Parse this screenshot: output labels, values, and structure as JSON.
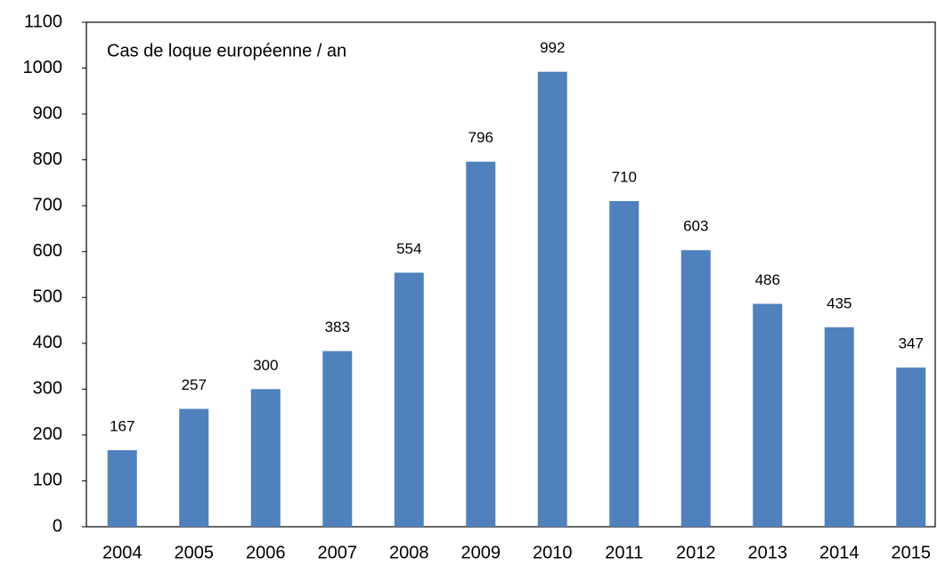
{
  "chart_data": {
    "type": "bar",
    "title": "Cas de loque européenne / an",
    "categories": [
      "2004",
      "2005",
      "2006",
      "2007",
      "2008",
      "2009",
      "2010",
      "2011",
      "2012",
      "2013",
      "2014",
      "2015"
    ],
    "values": [
      167,
      257,
      300,
      383,
      554,
      796,
      992,
      710,
      603,
      486,
      435,
      347
    ],
    "color": "#4f81bd",
    "ylim": [
      0,
      1100
    ],
    "yticks": [
      0,
      100,
      200,
      300,
      400,
      500,
      600,
      700,
      800,
      900,
      1000,
      1100
    ],
    "grid": false
  }
}
